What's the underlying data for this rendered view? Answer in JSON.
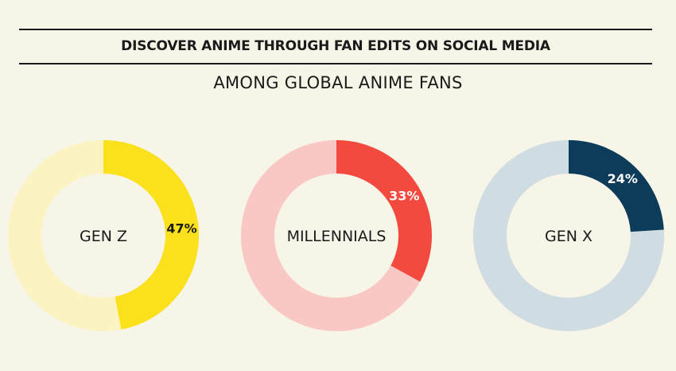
{
  "chart_data": {
    "type": "pie",
    "variant": "donut",
    "title": "DISCOVER ANIME THROUGH FAN EDITS ON SOCIAL MEDIA",
    "subtitle": "AMONG GLOBAL ANIME FANS",
    "series": [
      {
        "name": "GEN Z",
        "value": 47,
        "label": "47%",
        "color": "#fbe01c",
        "remainder_color": "#fbf4c2",
        "label_color": "#1a1a1a"
      },
      {
        "name": "MILLENNIALS",
        "value": 33,
        "label": "33%",
        "color": "#f4493e",
        "remainder_color": "#f9c8c5",
        "label_color": "#ffffff"
      },
      {
        "name": "GEN X",
        "value": 24,
        "label": "24%",
        "color": "#0d3c5a",
        "remainder_color": "#cfdce2",
        "label_color": "#ffffff"
      }
    ]
  }
}
